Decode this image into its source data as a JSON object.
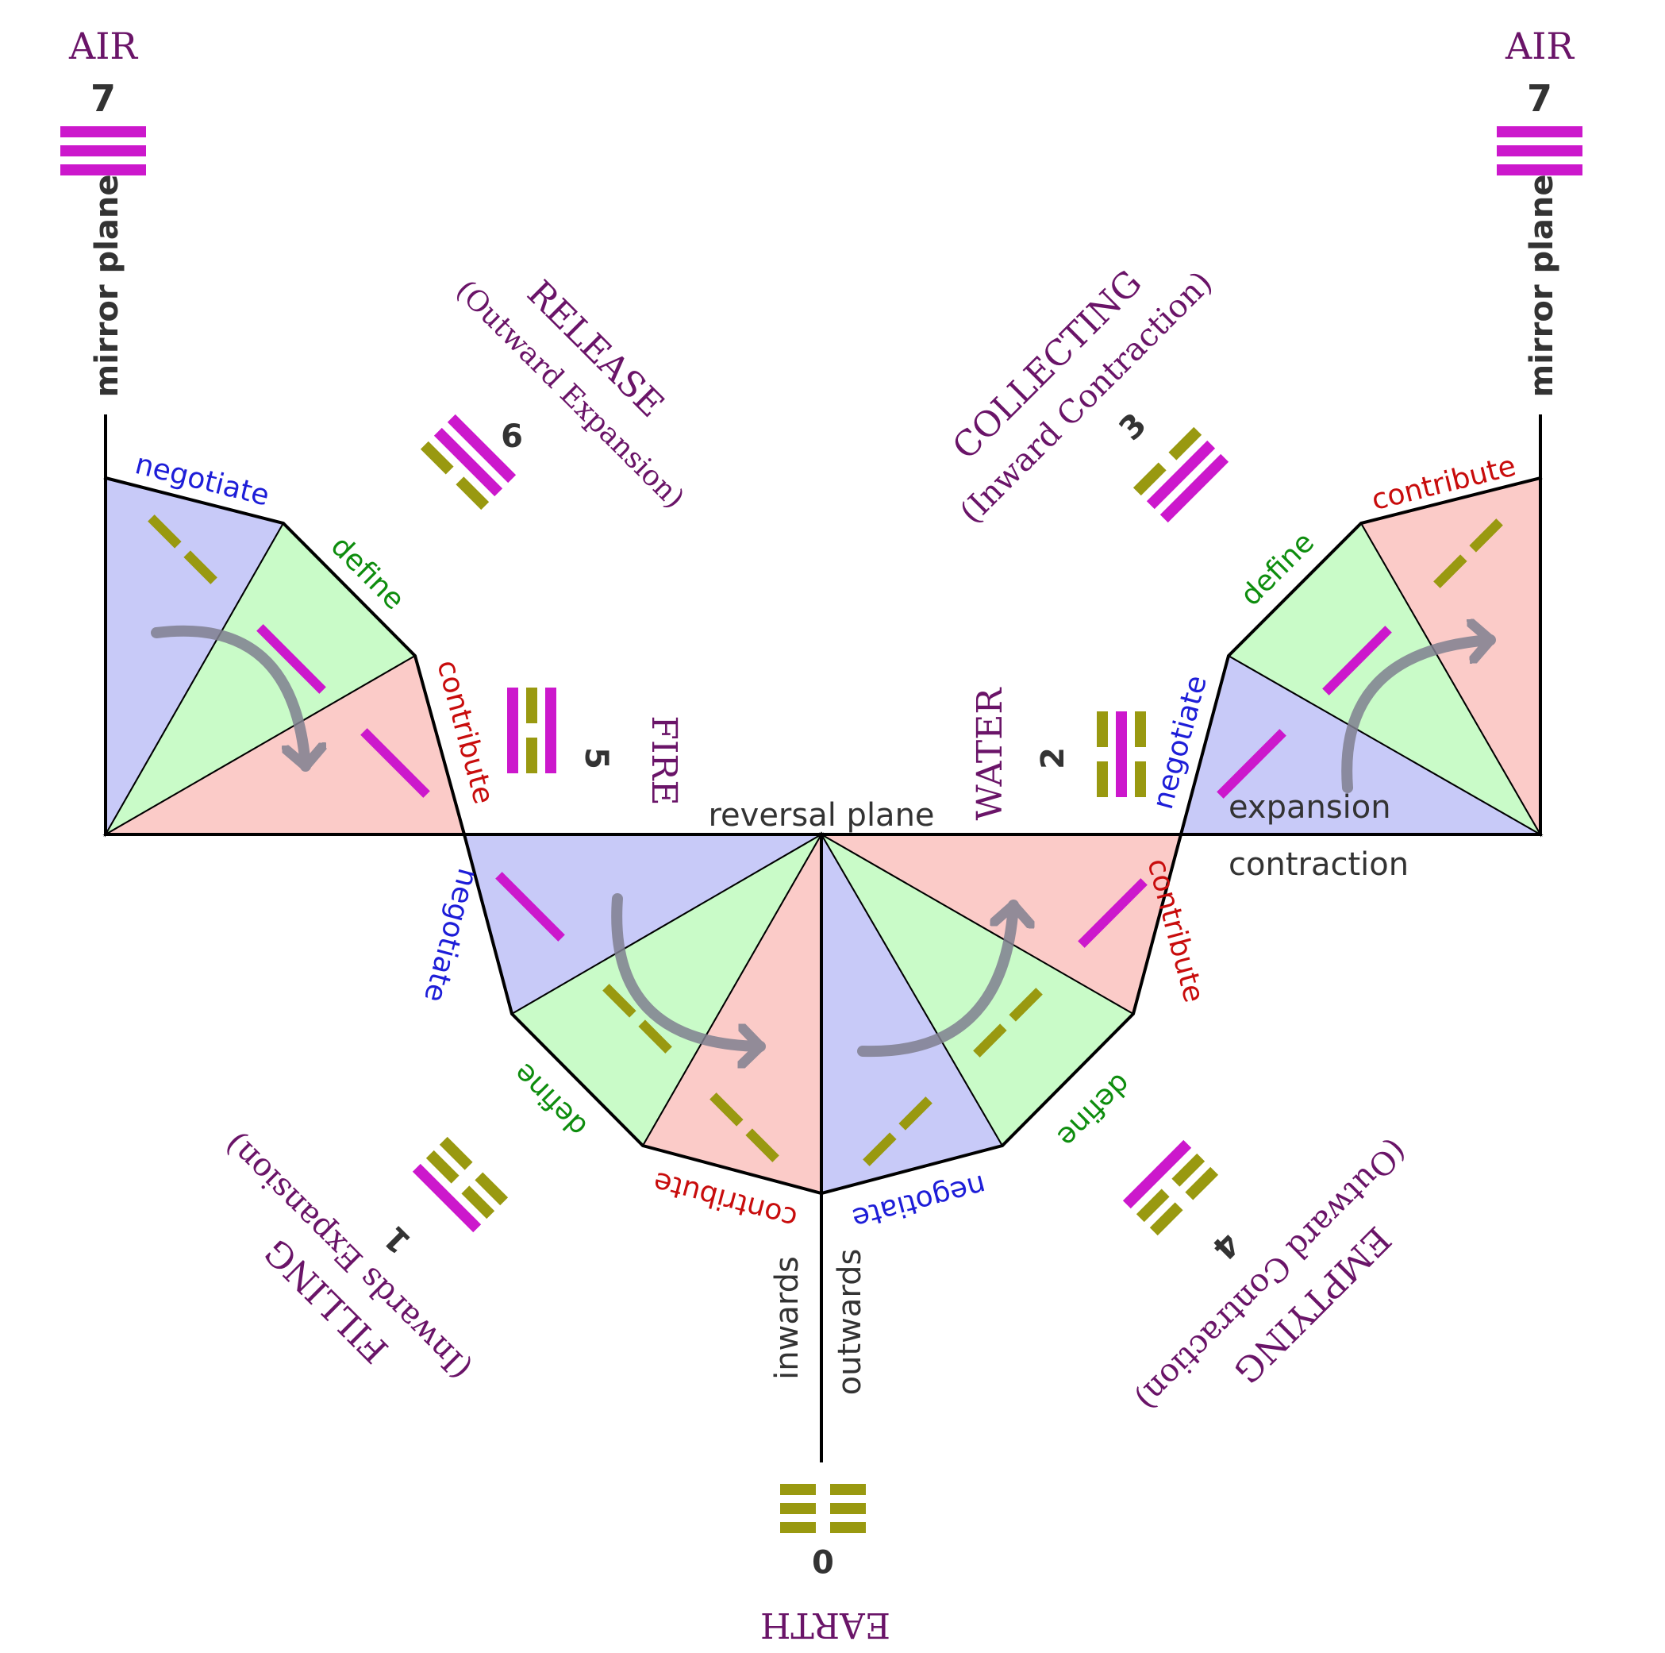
{
  "colors": {
    "purple_text": "#6a1468",
    "negotiate": "#1d1dd8",
    "define": "#0e8d0e",
    "contribute": "#c80c0c",
    "dark_text": "#333333",
    "blue_fill": "#c8caf8",
    "green_fill": "#c9fbc8",
    "red_fill": "#fbcbc8",
    "magenta_bar": "#cc18cc",
    "olive_bar": "#999910",
    "arrow": "#808090"
  },
  "elements": {
    "air": "AIR",
    "fire": "FIRE",
    "water": "WATER",
    "earth": "EARTH"
  },
  "numbers": {
    "air_left": "7",
    "air_right": "7",
    "release": "6",
    "fire": "5",
    "collecting": "3",
    "water": "2",
    "filling": "1",
    "emptying": "4",
    "earth": "0"
  },
  "processes": {
    "release_title": "RELEASE",
    "release_sub": "(Outward Expansion)",
    "collecting_title": "COLLECTING",
    "collecting_sub": "(Inward Contraction)",
    "filling_title": "FILLING",
    "filling_sub": "(Inwards Expansion)",
    "emptying_title": "EMPTYING",
    "emptying_sub": "(Outward Contraction)"
  },
  "planes": {
    "mirror": "mirror plane",
    "reversal": "reversal plane",
    "inwards": "inwards",
    "outwards": "outwards",
    "expansion": "expansion",
    "contraction": "contraction"
  },
  "edges": {
    "negotiate": "negotiate",
    "define": "define",
    "contribute": "contribute"
  },
  "trigrams": {
    "air": "☰",
    "release": "☱",
    "fire": "☲",
    "collecting": "☴",
    "water": "☵",
    "filling": "☳",
    "emptying": "☶",
    "earth": "☷"
  }
}
